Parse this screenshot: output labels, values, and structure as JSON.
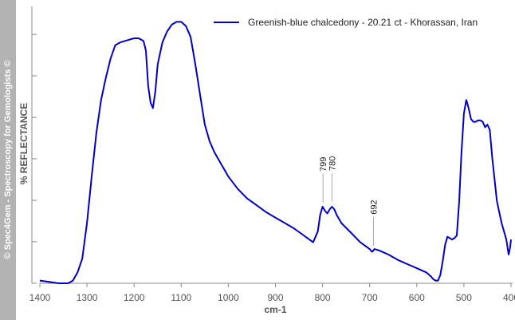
{
  "watermark": "© Spec4Gem - Spectroscopy for Gemologists ©",
  "colors": {
    "series": "#0000cc",
    "axis": "#888888",
    "sidebar": "#b3b3b3"
  },
  "chart_data": {
    "type": "line",
    "title": "",
    "xlabel": "cm-1",
    "ylabel": "% REFLECTANCE",
    "xlim": [
      1400,
      400
    ],
    "ylim": [
      0,
      100
    ],
    "x_reversed": true,
    "xticks": [
      1400,
      1300,
      1200,
      1100,
      1000,
      900,
      800,
      700,
      600,
      500,
      400
    ],
    "xtick_labels": [
      "1400",
      "1300",
      "1200",
      "1100",
      "1000",
      "900",
      "800",
      "700",
      "600",
      "500",
      "400"
    ],
    "yticks": [
      0,
      15.2,
      30.3,
      45.5,
      60.6,
      75.8,
      90.9
    ],
    "grid": false,
    "legend": "top-right",
    "series": [
      {
        "name": "Greenish-blue chalcedony - 20.21 ct - Khorassan, Iran",
        "color": "#0000cc",
        "x": [
          1400,
          1380,
          1360,
          1340,
          1330,
          1320,
          1310,
          1300,
          1290,
          1280,
          1270,
          1260,
          1250,
          1240,
          1230,
          1220,
          1210,
          1200,
          1190,
          1180,
          1175,
          1170,
          1165,
          1160,
          1155,
          1150,
          1140,
          1130,
          1120,
          1110,
          1100,
          1090,
          1080,
          1070,
          1060,
          1050,
          1040,
          1030,
          1020,
          1010,
          1000,
          980,
          960,
          940,
          920,
          900,
          880,
          860,
          840,
          820,
          810,
          805,
          800,
          795,
          790,
          785,
          780,
          775,
          770,
          760,
          740,
          720,
          700,
          695,
          692,
          690,
          680,
          660,
          640,
          620,
          600,
          580,
          570,
          565,
          560,
          555,
          550,
          545,
          540,
          535,
          530,
          525,
          520,
          515,
          510,
          505,
          500,
          495,
          490,
          485,
          480,
          475,
          470,
          465,
          460,
          455,
          450,
          445,
          440,
          430,
          420,
          410,
          405,
          402,
          400
        ],
        "values": [
          1.0,
          0.5,
          0.0,
          0.0,
          1.0,
          4.0,
          9.0,
          22.0,
          39.0,
          55.0,
          67.0,
          75.0,
          82.0,
          87.0,
          88.0,
          88.5,
          89.0,
          89.5,
          89.5,
          88.5,
          85.0,
          72.0,
          66.0,
          64.0,
          70.0,
          80.0,
          88.0,
          92.0,
          94.5,
          95.5,
          95.5,
          94.0,
          90.0,
          80.0,
          69.0,
          58.0,
          52.0,
          48.0,
          45.0,
          42.0,
          39.0,
          34.5,
          31.0,
          28.5,
          26.0,
          24.0,
          22.0,
          20.0,
          17.5,
          15.0,
          19.0,
          25.0,
          28.0,
          26.5,
          25.5,
          27.0,
          28.0,
          27.0,
          25.0,
          22.0,
          18.5,
          15.0,
          12.5,
          11.5,
          12.0,
          12.5,
          12.0,
          10.5,
          8.5,
          7.0,
          5.5,
          4.0,
          2.5,
          1.5,
          1.0,
          1.0,
          3.0,
          8.0,
          14.0,
          17.0,
          16.5,
          16.0,
          16.5,
          17.5,
          30.0,
          48.0,
          62.0,
          67.0,
          64.0,
          60.0,
          59.0,
          59.0,
          59.5,
          59.5,
          59.0,
          57.0,
          58.0,
          56.0,
          46.0,
          30.0,
          22.0,
          16.0,
          10.5,
          13.0,
          16.0
        ]
      }
    ],
    "annotations": [
      {
        "x": 799,
        "label": "799"
      },
      {
        "x": 780,
        "label": "780"
      },
      {
        "x": 692,
        "label": "692"
      }
    ]
  }
}
